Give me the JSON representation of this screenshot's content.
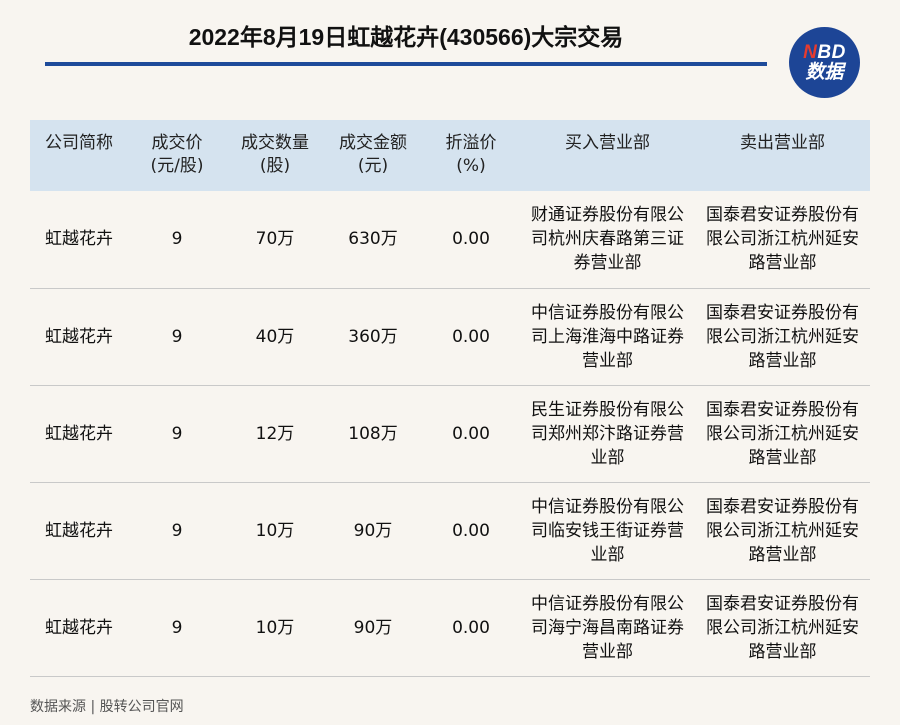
{
  "title": "2022年8月19日虹越花卉(430566)大宗交易",
  "logo": {
    "top_n": "N",
    "top_rest": "BD",
    "bottom": "数据"
  },
  "table": {
    "headers": [
      "公司简称",
      "成交价\n(元/股)",
      "成交数量\n(股)",
      "成交金额\n(元)",
      "折溢价\n(%)",
      "买入营业部",
      "卖出营业部"
    ],
    "rows": [
      [
        "虹越花卉",
        "9",
        "70万",
        "630万",
        "0.00",
        "财通证券股份有限公司杭州庆春路第三证券营业部",
        "国泰君安证券股份有限公司浙江杭州延安路营业部"
      ],
      [
        "虹越花卉",
        "9",
        "40万",
        "360万",
        "0.00",
        "中信证券股份有限公司上海淮海中路证券营业部",
        "国泰君安证券股份有限公司浙江杭州延安路营业部"
      ],
      [
        "虹越花卉",
        "9",
        "12万",
        "108万",
        "0.00",
        "民生证券股份有限公司郑州郑汴路证券营业部",
        "国泰君安证券股份有限公司浙江杭州延安路营业部"
      ],
      [
        "虹越花卉",
        "9",
        "10万",
        "90万",
        "0.00",
        "中信证券股份有限公司临安钱王街证券营业部",
        "国泰君安证券股份有限公司浙江杭州延安路营业部"
      ],
      [
        "虹越花卉",
        "9",
        "10万",
        "90万",
        "0.00",
        "中信证券股份有限公司海宁海昌南路证券营业部",
        "国泰君安证券股份有限公司浙江杭州延安路营业部"
      ]
    ]
  },
  "source": "数据来源 | 股转公司官网",
  "colors": {
    "accent": "#1e4b9a",
    "header_bg": "#d5e3ef",
    "page_bg": "#f8f5f0",
    "logo_red": "#e63b2e"
  }
}
